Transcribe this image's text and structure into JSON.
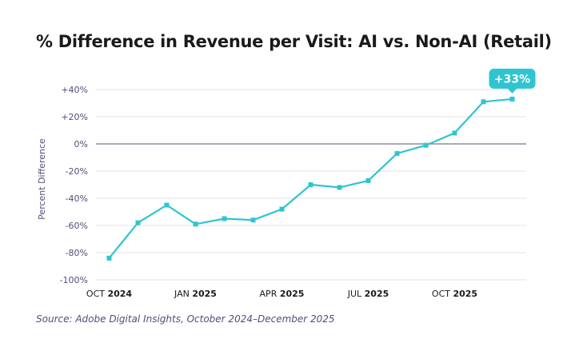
{
  "colors": {
    "series": "#2ec5d0",
    "axis_text": "#5a4a7a",
    "grid": "#e6e1ee",
    "zero_line": "#7a7488",
    "callout_text": "#ffffff"
  },
  "chart_data": {
    "type": "line",
    "title": "% Difference in Revenue per Visit: AI vs. Non-AI (Retail)",
    "ylabel": "Percent Difference",
    "xlabel": "",
    "ylim": [
      -100,
      40
    ],
    "grid": true,
    "y_ticks": [
      {
        "value": 40,
        "label": "+40%"
      },
      {
        "value": 20,
        "label": "+20%"
      },
      {
        "value": 0,
        "label": "0%"
      },
      {
        "value": -20,
        "label": "-20%"
      },
      {
        "value": -40,
        "label": "-40%"
      },
      {
        "value": -60,
        "label": "-60%"
      },
      {
        "value": -80,
        "label": "-80%"
      },
      {
        "value": -100,
        "label": "-100%"
      }
    ],
    "x_ticks": [
      {
        "index": 0,
        "month": "OCT",
        "year": "2024"
      },
      {
        "index": 3,
        "month": "JAN",
        "year": "2025"
      },
      {
        "index": 6,
        "month": "APR",
        "year": "2025"
      },
      {
        "index": 9,
        "month": "JUL",
        "year": "2025"
      },
      {
        "index": 12,
        "month": "OCT",
        "year": "2025"
      }
    ],
    "x": [
      "Oct 2024",
      "Nov 2024",
      "Dec 2024",
      "Jan 2025",
      "Feb 2025",
      "Mar 2025",
      "Apr 2025",
      "May 2025",
      "Jun 2025",
      "Jul 2025",
      "Aug 2025",
      "Sep 2025",
      "Oct 2025",
      "Nov 2025",
      "Dec 2025"
    ],
    "series": [
      {
        "values": [
          -84,
          -58,
          -45,
          -59,
          -55,
          -56,
          -48,
          -30,
          -32,
          -27,
          -7,
          -1,
          8,
          31,
          33
        ]
      }
    ],
    "annotations": [
      {
        "text": "+33%",
        "point_index": 14
      }
    ]
  },
  "footer": {
    "source": "Source: Adobe Digital Insights, October 2024–December 2025"
  }
}
